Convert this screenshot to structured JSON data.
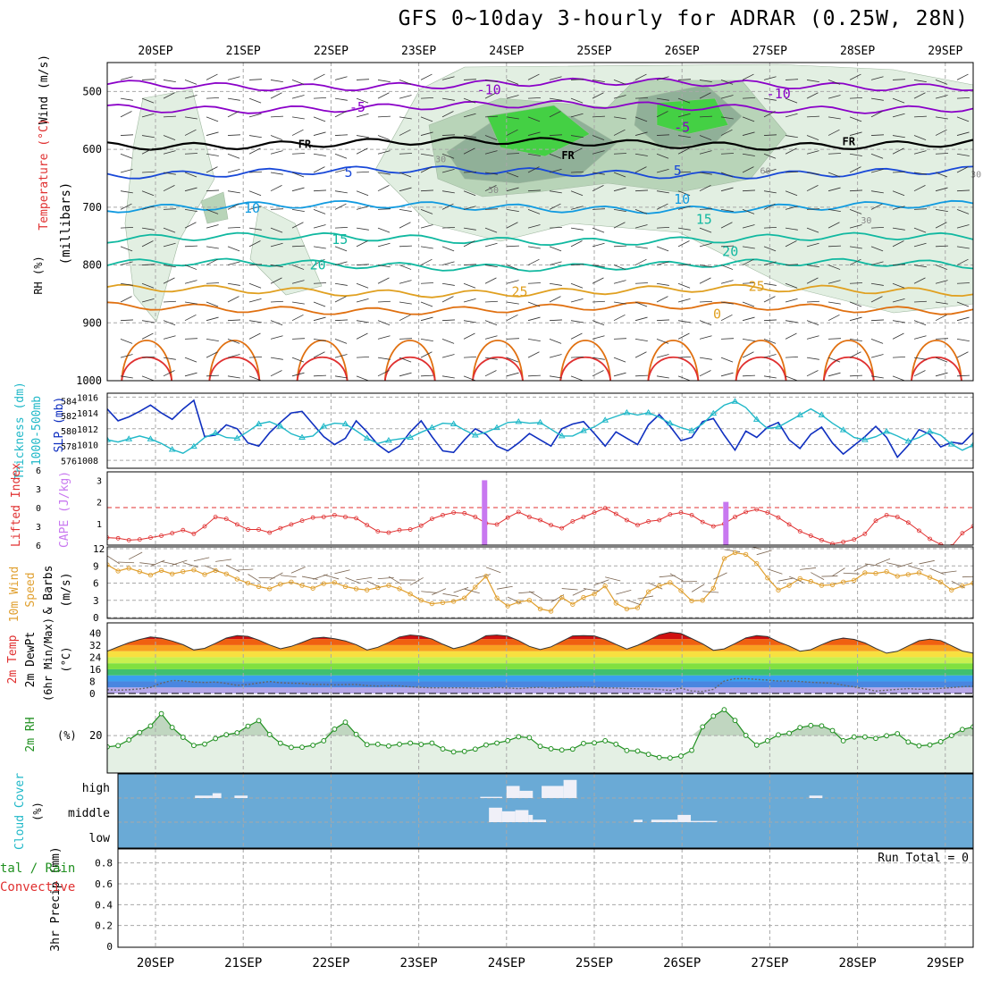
{
  "title": "GFS 0~10day 3-hourly for ADRAR (0.25W, 28N)",
  "dates": [
    "20SEP",
    "21SEP",
    "22SEP",
    "23SEP",
    "24SEP",
    "25SEP",
    "26SEP",
    "27SEP",
    "28SEP",
    "29SEP"
  ],
  "colors": {
    "temp_purple": "#8a00c8",
    "temp_blue": "#1848d8",
    "temp_sky": "#109ae0",
    "temp_teal": "#10b8a0",
    "temp_orange": "#e0a020",
    "temp_dkorange": "#e07010",
    "temp_red": "#e03030",
    "temp_magenta": "#c8107a",
    "freeze": "#000000",
    "rh_light": "#e2efe2",
    "rh_mid": "#b8d4b8",
    "rh_dark": "#90b098",
    "rh_green": "#44d044",
    "slp": "#1030c0",
    "thickness": "#20b8c8",
    "lifted": "#e03030",
    "cape": "#c878f0",
    "wind10": "#e0a030",
    "barb": "#7a6450",
    "rh2m": "#209020",
    "cloud_bg": "#6aaad6",
    "cloud_fill": "#f0f0f8",
    "grid": "#a8a8a8"
  },
  "chart_data": [
    {
      "panel": "upper-air",
      "type": "contour",
      "labels": {
        "wind": "Wind (m/s)",
        "temperature": "Temperature (°C)",
        "rh": "RH (%)",
        "pressure": "(millibars)"
      },
      "y_ticks": [
        500,
        600,
        700,
        800,
        900,
        1000
      ],
      "ylim": [
        450,
        1000
      ],
      "isotherm_labels": [
        {
          "text": "-10",
          "day": 3.8,
          "p": 497
        },
        {
          "text": "-10",
          "day": 7.1,
          "p": 504
        },
        {
          "text": "-5",
          "day": 2.3,
          "p": 527
        },
        {
          "text": "-5",
          "day": 6.0,
          "p": 562
        },
        {
          "text": "FR",
          "day": 1.7,
          "p": 590
        },
        {
          "text": "FR",
          "day": 4.7,
          "p": 609
        },
        {
          "text": "FR",
          "day": 7.9,
          "p": 585
        },
        {
          "text": "5",
          "day": 2.2,
          "p": 640
        },
        {
          "text": "5",
          "day": 5.95,
          "p": 637
        },
        {
          "text": "10",
          "day": 1.1,
          "p": 702
        },
        {
          "text": "10",
          "day": 6.0,
          "p": 686
        },
        {
          "text": "15",
          "day": 2.1,
          "p": 756
        },
        {
          "text": "15",
          "day": 6.25,
          "p": 721
        },
        {
          "text": "20",
          "day": 1.85,
          "p": 800
        },
        {
          "text": "20",
          "day": 6.55,
          "p": 777
        },
        {
          "text": "25",
          "day": 4.15,
          "p": 846
        },
        {
          "text": "25",
          "day": 6.85,
          "p": 837
        },
        {
          "text": "0",
          "day": 6.4,
          "p": 885
        }
      ],
      "rh_labels": [
        {
          "text": "30",
          "day": 3.25,
          "p": 616
        },
        {
          "text": "30",
          "day": 9.35,
          "p": 642
        },
        {
          "text": "30",
          "day": 8.1,
          "p": 722
        },
        {
          "text": "50",
          "day": 3.85,
          "p": 669
        },
        {
          "text": "60",
          "day": 6.95,
          "p": 636
        }
      ]
    },
    {
      "panel": "thickness-slp",
      "type": "line",
      "ylabel_left": "1000-500mb Thickness (dm)",
      "ylabel_right": "SLP (mb)",
      "left_ticks": [
        576,
        578,
        580,
        582,
        584
      ],
      "right_ticks": [
        1008,
        1010,
        1012,
        1014,
        1016
      ],
      "series": [
        {
          "name": "SLP (mb)",
          "values": [
            1014.5,
            1013.0,
            1013.5,
            1014.2,
            1015.0,
            1014.0,
            1013.2,
            1014.5,
            1015.6,
            1011.0,
            1011.2,
            1012.5,
            1012.0,
            1010.2,
            1009.8,
            1011.5,
            1012.8,
            1014.0,
            1014.2,
            1012.6,
            1011.0,
            1010.0,
            1010.8,
            1013.0,
            1011.6,
            1010.0,
            1009.0,
            1009.8,
            1011.6,
            1013.0,
            1011.0,
            1009.2,
            1009.0,
            1010.6,
            1012.0,
            1011.3,
            1009.8,
            1009.2,
            1010.2,
            1011.4,
            1010.6,
            1009.8,
            1012.0,
            1012.6,
            1012.9,
            1011.4,
            1009.8,
            1011.6,
            1010.8,
            1010.0,
            1012.5,
            1013.8,
            1012.3,
            1010.5,
            1010.9,
            1012.9,
            1013.3,
            1011.2,
            1009.3,
            1011.7,
            1010.9,
            1012.2,
            1012.8,
            1010.6,
            1009.5,
            1011.3,
            1012.2,
            1010.2,
            1008.8,
            1009.9,
            1011.0,
            1012.3,
            1010.9,
            1008.4,
            1009.9,
            1011.9,
            1011.3,
            1009.7,
            1010.3,
            1010.1,
            1011.5
          ]
        },
        {
          "name": "1000-500mb Thickness (dm)",
          "values": [
            578.8,
            578.5,
            578.9,
            579.3,
            578.9,
            578.3,
            577.5,
            577.0,
            577.9,
            579.1,
            579.7,
            579.1,
            579.0,
            579.9,
            580.9,
            581.2,
            580.6,
            579.6,
            579.1,
            579.3,
            580.6,
            581.0,
            580.9,
            580.0,
            579.0,
            578.3,
            578.7,
            578.9,
            579.1,
            579.8,
            580.4,
            581.0,
            580.9,
            580.1,
            579.4,
            579.8,
            580.4,
            581.1,
            581.2,
            581.0,
            581.1,
            580.2,
            579.3,
            579.3,
            580.0,
            580.5,
            581.4,
            581.9,
            582.4,
            582.1,
            582.4,
            581.8,
            581.0,
            580.4,
            580.0,
            580.9,
            582.3,
            583.4,
            583.9,
            583.1,
            581.5,
            580.3,
            580.5,
            581.3,
            582.1,
            582.9,
            582.1,
            581.0,
            580.1,
            579.1,
            578.8,
            579.2,
            579.9,
            579.3,
            578.6,
            579.1,
            579.9,
            579.4,
            578.2,
            577.4,
            578.1
          ]
        }
      ]
    },
    {
      "panel": "stability",
      "type": "line",
      "ylabel_left": "Lifted Index",
      "ylabel_right": "CAPE (J/kg)",
      "li_ticks": [
        -6,
        -3,
        0,
        3,
        6
      ],
      "cape_ticks": [
        1,
        2,
        3
      ],
      "lifted_index": [
        4.8,
        4.9,
        5.2,
        5.1,
        4.8,
        4.5,
        4.1,
        3.6,
        4.2,
        3.0,
        1.5,
        1.8,
        2.7,
        3.5,
        3.5,
        4.0,
        3.3,
        2.7,
        2.1,
        1.6,
        1.5,
        1.2,
        1.5,
        1.7,
        2.8,
        3.8,
        4.0,
        3.6,
        3.5,
        2.9,
        1.8,
        1.2,
        0.8,
        0.9,
        1.5,
        2.5,
        2.7,
        1.6,
        0.7,
        1.5,
        2.0,
        2.8,
        3.3,
        2.2,
        1.5,
        0.8,
        0.1,
        1.0,
        2.0,
        2.8,
        2.2,
        2.0,
        1.1,
        0.8,
        1.2,
        2.3,
        3.0,
        2.6,
        1.5,
        0.7,
        0.3,
        0.8,
        1.6,
        2.7,
        3.8,
        4.5,
        5.2,
        5.8,
        5.5,
        5.1,
        4.2,
        2.1,
        1.2,
        1.5,
        2.4,
        3.7,
        5.0,
        5.9,
        6.2,
        4.1,
        3.0
      ],
      "cape": [
        {
          "day": 3.75,
          "value": 3.0
        },
        {
          "day": 6.5,
          "value": 2.0
        }
      ]
    },
    {
      "panel": "wind10m",
      "type": "line",
      "ylabel": "10m Wind Speed & Barbs (m/s)",
      "ticks": [
        0,
        3,
        6,
        9,
        12
      ],
      "values": [
        9.2,
        8.1,
        8.6,
        8.0,
        7.4,
        8.2,
        7.6,
        8.0,
        8.3,
        7.5,
        8.2,
        7.6,
        6.7,
        6.0,
        5.4,
        5.0,
        5.8,
        6.2,
        5.6,
        5.1,
        5.9,
        6.1,
        5.4,
        5.0,
        4.8,
        5.2,
        5.6,
        5.0,
        4.1,
        3.0,
        2.4,
        2.6,
        2.8,
        3.4,
        5.3,
        7.2,
        3.4,
        2.0,
        2.7,
        3.0,
        1.5,
        1.1,
        3.5,
        2.3,
        3.5,
        4.1,
        5.5,
        2.5,
        1.5,
        1.7,
        4.5,
        5.5,
        6.1,
        4.7,
        2.9,
        3.0,
        5.1,
        10.3,
        11.3,
        11.0,
        9.4,
        6.9,
        4.8,
        5.6,
        6.8,
        6.3,
        5.6,
        5.7,
        6.2,
        6.5,
        7.8,
        7.7,
        8.0,
        7.2,
        7.5,
        7.8,
        7.0,
        6.2,
        4.8,
        5.5,
        6.0
      ]
    },
    {
      "panel": "temp2m",
      "type": "area",
      "ylabel": "2m Temp 2m DewPt (6hr Min/Max) (°C)",
      "ticks": [
        0,
        8,
        16,
        24,
        32,
        40
      ],
      "temperature": [
        28.0,
        30.8,
        33.6,
        35.7,
        37.4,
        36.6,
        34.7,
        32.3,
        28.8,
        29.9,
        33.2,
        36.7,
        38.3,
        37.8,
        35.3,
        32.1,
        29.6,
        31.2,
        33.8,
        36.6,
        37.2,
        36.2,
        34.8,
        32.3,
        28.8,
        30.6,
        33.8,
        37.4,
        38.7,
        38.0,
        36.0,
        32.6,
        29.7,
        31.4,
        34.3,
        38.2,
        38.7,
        37.9,
        35.0,
        31.2,
        29.1,
        30.9,
        34.5,
        38.1,
        38.3,
        38.1,
        35.8,
        32.5,
        29.4,
        31.9,
        35.2,
        38.8,
        40.5,
        39.7,
        36.3,
        32.9,
        28.6,
        29.5,
        33.0,
        36.8,
        38.3,
        37.6,
        34.2,
        31.4,
        28.0,
        29.0,
        32.3,
        35.2,
        36.7,
        35.8,
        33.4,
        29.8,
        26.7,
        27.9,
        31.5,
        34.9,
        35.9,
        35.0,
        31.6,
        28.1,
        26.7
      ],
      "dewpoint": [
        2.5,
        2.2,
        2.5,
        3.0,
        4.0,
        6.8,
        8.6,
        8.4,
        7.5,
        7.3,
        7.6,
        6.7,
        5.4,
        5.9,
        7.0,
        7.9,
        7.1,
        6.8,
        6.6,
        5.9,
        6.0,
        5.7,
        5.9,
        6.0,
        5.2,
        4.9,
        5.2,
        5.1,
        4.4,
        4.0,
        3.7,
        3.8,
        3.7,
        3.7,
        3.5,
        3.3,
        4.0,
        3.6,
        3.2,
        3.8,
        4.1,
        3.5,
        3.9,
        4.1,
        4.3,
        4.1,
        3.7,
        3.6,
        3.3,
        3.1,
        3.0,
        2.6,
        2.0,
        3.5,
        1.6,
        1.3,
        2.7,
        8.2,
        9.8,
        9.8,
        9.3,
        8.9,
        8.2,
        8.3,
        7.9,
        7.4,
        7.1,
        6.8,
        5.5,
        4.4,
        3.0,
        1.6,
        2.2,
        2.7,
        3.2,
        2.8,
        2.9,
        3.4,
        3.9,
        4.5,
        4.8
      ]
    },
    {
      "panel": "rh2m",
      "type": "area",
      "ylabel": "2m RH (%)",
      "ticks": [
        20
      ],
      "ylim": [
        0,
        45
      ],
      "values": [
        13.5,
        14.2,
        17.5,
        21.8,
        25.5,
        32.6,
        24.7,
        19.0,
        14.3,
        15.1,
        18.3,
        20.5,
        21.6,
        25.4,
        28.6,
        20.6,
        15.6,
        13.2,
        13.3,
        14.4,
        17.0,
        23.7,
        27.7,
        20.7,
        14.8,
        15.0,
        14.0,
        15.0,
        15.7,
        14.9,
        15.7,
        12.3,
        10.6,
        10.9,
        12.2,
        14.6,
        15.7,
        17.1,
        19.3,
        18.8,
        13.8,
        12.4,
        11.7,
        12.2,
        15.5,
        15.8,
        17.0,
        15.0,
        11.4,
        11.1,
        9.2,
        7.4,
        7.1,
        8.2,
        11.5,
        25.0,
        31.2,
        34.9,
        28.7,
        20.1,
        14.5,
        17.0,
        20.4,
        21.3,
        24.6,
        25.8,
        25.6,
        22.9,
        17.0,
        19.2,
        19.2,
        18.4,
        19.9,
        21.1,
        16.3,
        14.1,
        14.6,
        16.5,
        20.0,
        23.5,
        25.0
      ]
    },
    {
      "panel": "cloud-cover",
      "type": "bar",
      "ylabel": "Cloud Cover (%)",
      "levels": [
        "high",
        "middle",
        "low"
      ],
      "high_cells": [
        {
          "start": 0.45,
          "end": 0.65,
          "value": 10
        },
        {
          "start": 0.65,
          "end": 0.75,
          "value": 20
        },
        {
          "start": 0.9,
          "end": 1.05,
          "value": 10
        },
        {
          "start": 3.7,
          "end": 3.95,
          "value": 5
        },
        {
          "start": 4.0,
          "end": 4.15,
          "value": 50
        },
        {
          "start": 4.15,
          "end": 4.3,
          "value": 30
        },
        {
          "start": 4.4,
          "end": 4.65,
          "value": 50
        },
        {
          "start": 4.65,
          "end": 4.8,
          "value": 75
        },
        {
          "start": 7.45,
          "end": 7.6,
          "value": 10
        }
      ],
      "middle_cells": [
        {
          "start": 3.8,
          "end": 3.95,
          "value": 60
        },
        {
          "start": 3.95,
          "end": 4.1,
          "value": 45
        },
        {
          "start": 4.1,
          "end": 4.25,
          "value": 50
        },
        {
          "start": 4.25,
          "end": 4.3,
          "value": 30
        },
        {
          "start": 4.3,
          "end": 4.45,
          "value": 10
        },
        {
          "start": 5.45,
          "end": 5.55,
          "value": 10
        },
        {
          "start": 5.65,
          "end": 5.95,
          "value": 10
        },
        {
          "start": 5.95,
          "end": 6.1,
          "value": 30
        },
        {
          "start": 6.1,
          "end": 6.4,
          "value": 5
        }
      ]
    },
    {
      "panel": "precip",
      "type": "bar",
      "ylabel": "3hr Precip (mm)",
      "side_label_1": "tal / Rain",
      "side_label_2": "Convective",
      "run_total": "Run Total = 0",
      "ticks": [
        "0",
        "0.2",
        "0.4",
        "0.6",
        "0.8"
      ],
      "ylim": [
        0,
        0.9
      ],
      "values": []
    }
  ]
}
